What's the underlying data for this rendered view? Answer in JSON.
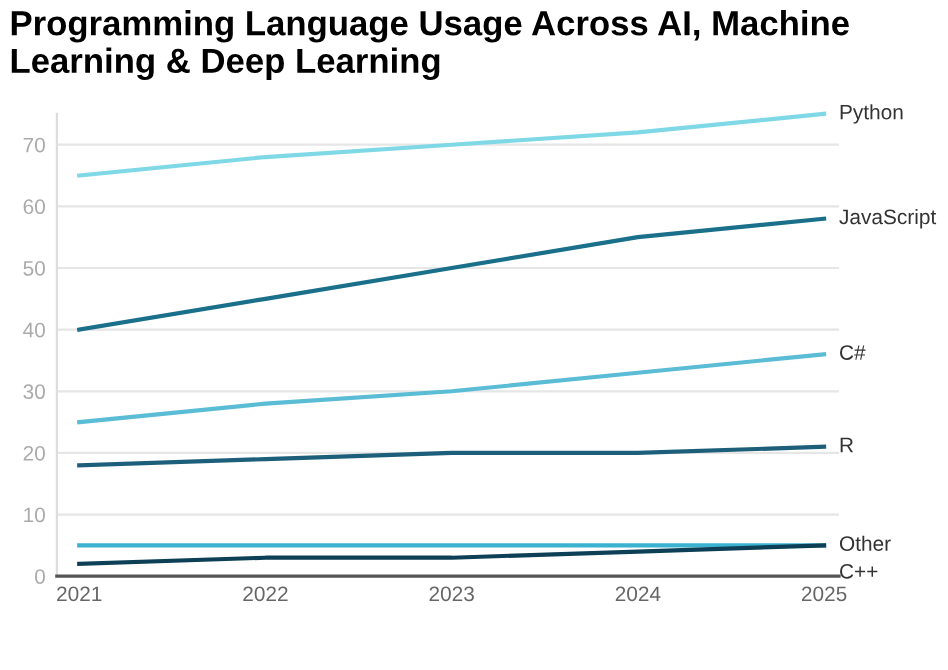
{
  "chart_data": {
    "type": "line",
    "title": "Programming Language Usage Across AI, Machine Learning & Deep Learning",
    "categories": [
      "2021",
      "2022",
      "2023",
      "2024",
      "2025"
    ],
    "series": [
      {
        "name": "Python",
        "color": "#7fd8e6",
        "values": [
          65,
          68,
          70,
          72,
          75
        ]
      },
      {
        "name": "JavaScript",
        "color": "#1a6f8a",
        "values": [
          40,
          45,
          50,
          55,
          58
        ]
      },
      {
        "name": "C#",
        "color": "#5bbcd6",
        "values": [
          25,
          28,
          30,
          33,
          36
        ]
      },
      {
        "name": "R",
        "color": "#1d5f7a",
        "values": [
          18,
          19,
          20,
          20,
          21
        ]
      },
      {
        "name": "Other",
        "color": "#3bb3d0",
        "values": [
          5,
          5,
          5,
          5,
          5
        ]
      },
      {
        "name": "C++",
        "color": "#0d3f57",
        "values": [
          2,
          3,
          3,
          4,
          5
        ]
      }
    ],
    "ylim": [
      0,
      75
    ],
    "yticks": [
      0,
      10,
      20,
      30,
      40,
      50,
      60,
      70
    ],
    "grid": "y",
    "legend": false,
    "marker": "none",
    "line_style": "solid"
  }
}
